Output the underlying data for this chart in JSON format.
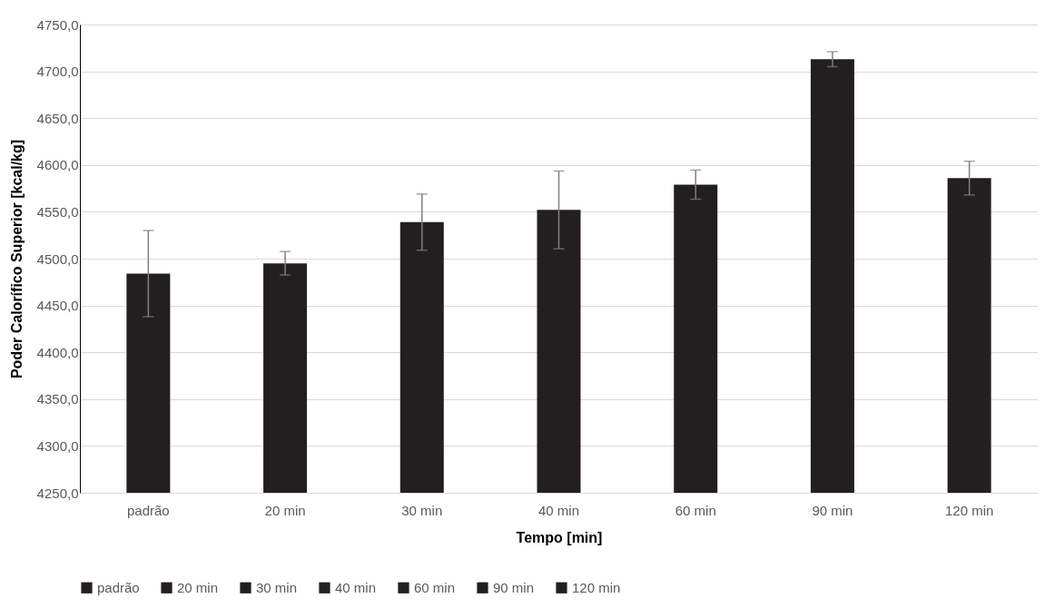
{
  "chart_data": {
    "type": "bar",
    "xlabel": "Tempo [min]",
    "ylabel": "Poder Calorífico Superior [kcal/kg]",
    "categories": [
      "padrão",
      "20 min",
      "30 min",
      "40 min",
      "60 min",
      "90 min",
      "120 min"
    ],
    "series": [
      {
        "name": "padrão",
        "color": "#231f20",
        "values": [
          4484,
          null,
          null,
          null,
          null,
          null,
          null
        ],
        "errors": [
          46,
          null,
          null,
          null,
          null,
          null,
          null
        ]
      },
      {
        "name": "20 min",
        "color": "#231f20",
        "values": [
          null,
          4495,
          null,
          null,
          null,
          null,
          null
        ],
        "errors": [
          null,
          12.5,
          null,
          null,
          null,
          null,
          null
        ]
      },
      {
        "name": "30 min",
        "color": "#231f20",
        "values": [
          null,
          null,
          4539,
          null,
          null,
          null,
          null
        ],
        "errors": [
          null,
          null,
          30,
          null,
          null,
          null,
          null
        ]
      },
      {
        "name": "40 min",
        "color": "#231f20",
        "values": [
          null,
          null,
          null,
          4552,
          null,
          null,
          null
        ],
        "errors": [
          null,
          null,
          null,
          41.5,
          null,
          null,
          null
        ]
      },
      {
        "name": "60 min",
        "color": "#231f20",
        "values": [
          null,
          null,
          null,
          null,
          4579,
          null,
          null
        ],
        "errors": [
          null,
          null,
          null,
          null,
          15.5,
          null,
          null
        ]
      },
      {
        "name": "90 min",
        "color": "#231f20",
        "values": [
          null,
          null,
          null,
          null,
          null,
          4713,
          null
        ],
        "errors": [
          null,
          null,
          null,
          null,
          null,
          8,
          null
        ]
      },
      {
        "name": "120 min",
        "color": "#231f20",
        "values": [
          null,
          null,
          null,
          null,
          null,
          null,
          4586
        ],
        "errors": [
          null,
          null,
          null,
          null,
          null,
          null,
          18
        ]
      }
    ],
    "ylim": [
      4250,
      4750
    ],
    "yticks": [
      {
        "value": 4250,
        "label": "4250,0"
      },
      {
        "value": 4300,
        "label": "4300,0"
      },
      {
        "value": 4350,
        "label": "4350,0"
      },
      {
        "value": 4400,
        "label": "4400,0"
      },
      {
        "value": 4450,
        "label": "4450,0"
      },
      {
        "value": 4500,
        "label": "4500,0"
      },
      {
        "value": 4550,
        "label": "4550,0"
      },
      {
        "value": 4600,
        "label": "4600,0"
      },
      {
        "value": 4650,
        "label": "4650,0"
      },
      {
        "value": 4700,
        "label": "4700,0"
      },
      {
        "value": 4750,
        "label": "4750,0"
      }
    ],
    "grid": "y",
    "legend": "bottom"
  }
}
